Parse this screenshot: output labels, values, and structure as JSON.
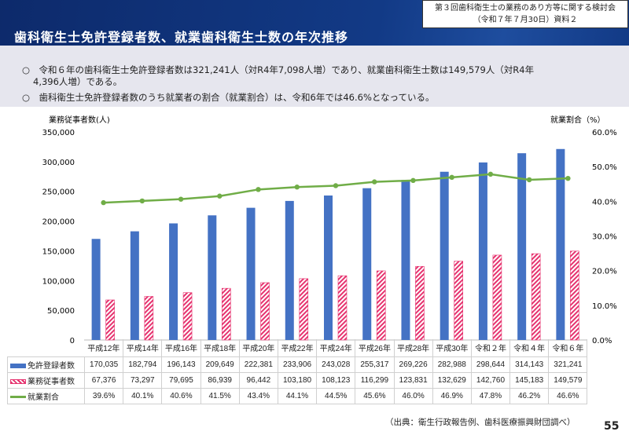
{
  "header": {
    "title": "歯科衛生士免許登録者数、就業歯科衛生士数の年次推移",
    "meeting_line1": "第３回歯科衛生士の業務のあり方等に関する検討会",
    "meeting_line2": "（令和７年７月30日）資料２"
  },
  "summary": {
    "bullet1": "○　令和６年の歯科衛生士免許登録者数は321,241人（対R4年7,098人増）であり、就業歯科衛生士数は149,579人（対R4年",
    "bullet1_cont": "4,396人増）である。",
    "bullet2": "○　歯科衛生士免許登録者数のうち就業者の割合（就業割合）は、令和6年では46.6%となっている。"
  },
  "chart_data": {
    "type": "bar",
    "ylabel": "業務従事者数(人)",
    "y2label": "就業割合（%）",
    "ylim": [
      0,
      350000
    ],
    "y2lim": [
      0,
      60
    ],
    "yticks": [
      "0",
      "50,000",
      "100,000",
      "150,000",
      "200,000",
      "250,000",
      "300,000",
      "350,000"
    ],
    "y2ticks": [
      "0.0%",
      "10.0%",
      "20.0%",
      "30.0%",
      "40.0%",
      "50.0%",
      "60.0%"
    ],
    "categories": [
      "平成12年",
      "平成14年",
      "平成16年",
      "平成18年",
      "平成20年",
      "平成22年",
      "平成24年",
      "平成26年",
      "平成28年",
      "平成30年",
      "令和２年",
      "令和４年",
      "令和６年"
    ],
    "series": [
      {
        "name": "免許登録者数",
        "type": "bar",
        "color": "#4472c4",
        "values": [
          170035,
          182794,
          196143,
          209649,
          222381,
          233906,
          243028,
          255317,
          269226,
          282988,
          298644,
          314143,
          321241
        ],
        "labels": [
          "170,035",
          "182,794",
          "196,143",
          "209,649",
          "222,381",
          "233,906",
          "243,028",
          "255,317",
          "269,226",
          "282,988",
          "298,644",
          "314,143",
          "321,241"
        ]
      },
      {
        "name": "業務従事者数",
        "type": "bar",
        "color": "#e6336f",
        "values": [
          67376,
          73297,
          79695,
          86939,
          96442,
          103180,
          108123,
          116299,
          123831,
          132629,
          142760,
          145183,
          149579
        ],
        "labels": [
          "67,376",
          "73,297",
          "79,695",
          "86,939",
          "96,442",
          "103,180",
          "108,123",
          "116,299",
          "123,831",
          "132,629",
          "142,760",
          "145,183",
          "149,579"
        ]
      },
      {
        "name": "就業割合",
        "type": "line",
        "axis": "right",
        "color": "#70ad47",
        "values": [
          39.6,
          40.1,
          40.6,
          41.5,
          43.4,
          44.1,
          44.5,
          45.6,
          46.0,
          46.9,
          47.8,
          46.2,
          46.6
        ],
        "labels": [
          "39.6%",
          "40.1%",
          "40.6%",
          "41.5%",
          "43.4%",
          "44.1%",
          "44.5%",
          "45.6%",
          "46.0%",
          "46.9%",
          "47.8%",
          "46.2%",
          "46.6%"
        ]
      }
    ]
  },
  "footer": {
    "source": "（出典：衛生行政報告例、歯科医療振興財団調べ）",
    "page": "55"
  }
}
